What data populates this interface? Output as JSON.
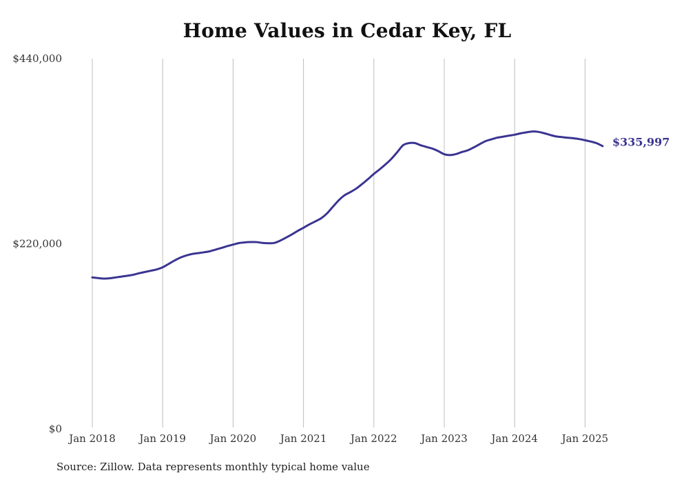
{
  "chart_data": {
    "type": "line",
    "title": "Home Values in Cedar Key, FL",
    "xlabel": "",
    "ylabel": "",
    "x_ticks": [
      "Jan 2018",
      "Jan 2019",
      "Jan 2020",
      "Jan 2021",
      "Jan 2022",
      "Jan 2023",
      "Jan 2024",
      "Jan 2025"
    ],
    "y_ticks": [
      "$0",
      "$220,000",
      "$440,000"
    ],
    "ylim": [
      0,
      440000
    ],
    "xlim": [
      "2018-01",
      "2025-12"
    ],
    "grid": "vertical",
    "line_color": "#3a3491",
    "end_label": "$335,997",
    "series": [
      {
        "x": [
          "2018-01",
          "2018-02",
          "2018-03",
          "2018-04",
          "2018-05",
          "2018-06",
          "2018-07",
          "2018-08",
          "2018-09",
          "2018-10",
          "2018-11",
          "2018-12",
          "2019-01",
          "2019-02",
          "2019-03",
          "2019-04",
          "2019-05",
          "2019-06",
          "2019-07",
          "2019-08",
          "2019-09",
          "2019-10",
          "2019-11",
          "2019-12",
          "2020-01",
          "2020-02",
          "2020-03",
          "2020-04",
          "2020-05",
          "2020-06",
          "2020-07",
          "2020-08",
          "2020-09",
          "2020-10",
          "2020-11",
          "2020-12",
          "2021-01",
          "2021-02",
          "2021-03",
          "2021-04",
          "2021-05",
          "2021-06",
          "2021-07",
          "2021-08",
          "2021-09",
          "2021-10",
          "2021-11",
          "2021-12",
          "2022-01",
          "2022-02",
          "2022-03",
          "2022-04",
          "2022-05",
          "2022-06",
          "2022-07",
          "2022-08",
          "2022-09",
          "2022-10",
          "2022-11",
          "2022-12",
          "2023-01",
          "2023-02",
          "2023-03",
          "2023-04",
          "2023-05",
          "2023-06",
          "2023-07",
          "2023-08",
          "2023-09",
          "2023-10",
          "2023-11",
          "2023-12",
          "2024-01",
          "2024-02",
          "2024-03",
          "2024-04",
          "2024-05",
          "2024-06",
          "2024-07",
          "2024-08",
          "2024-09",
          "2024-10",
          "2024-11",
          "2024-12",
          "2025-01",
          "2025-02",
          "2025-03",
          "2025-04"
        ],
        "values": [
          180000,
          179200,
          178600,
          179000,
          180000,
          181000,
          182000,
          183200,
          185000,
          186500,
          188000,
          189500,
          192000,
          196000,
          200000,
          203500,
          206000,
          207800,
          208800,
          209800,
          211000,
          213000,
          215000,
          217200,
          219000,
          220800,
          221600,
          222000,
          222000,
          221000,
          220600,
          221000,
          223600,
          227200,
          231000,
          235200,
          239000,
          243000,
          246500,
          250200,
          256000,
          263800,
          271600,
          277600,
          281400,
          285600,
          291000,
          296800,
          303000,
          308500,
          314400,
          321000,
          329000,
          337200,
          339600,
          339600,
          337000,
          335000,
          333000,
          330000,
          326400,
          325400,
          326600,
          329000,
          331000,
          334400,
          338200,
          341800,
          344000,
          346000,
          347200,
          348400,
          349600,
          351200,
          352400,
          353400,
          353000,
          351400,
          349400,
          347600,
          346800,
          346000,
          345400,
          344400,
          343000,
          341400,
          339400,
          335997
        ]
      }
    ]
  },
  "source_note": "Source: Zillow. Data represents monthly typical home value"
}
